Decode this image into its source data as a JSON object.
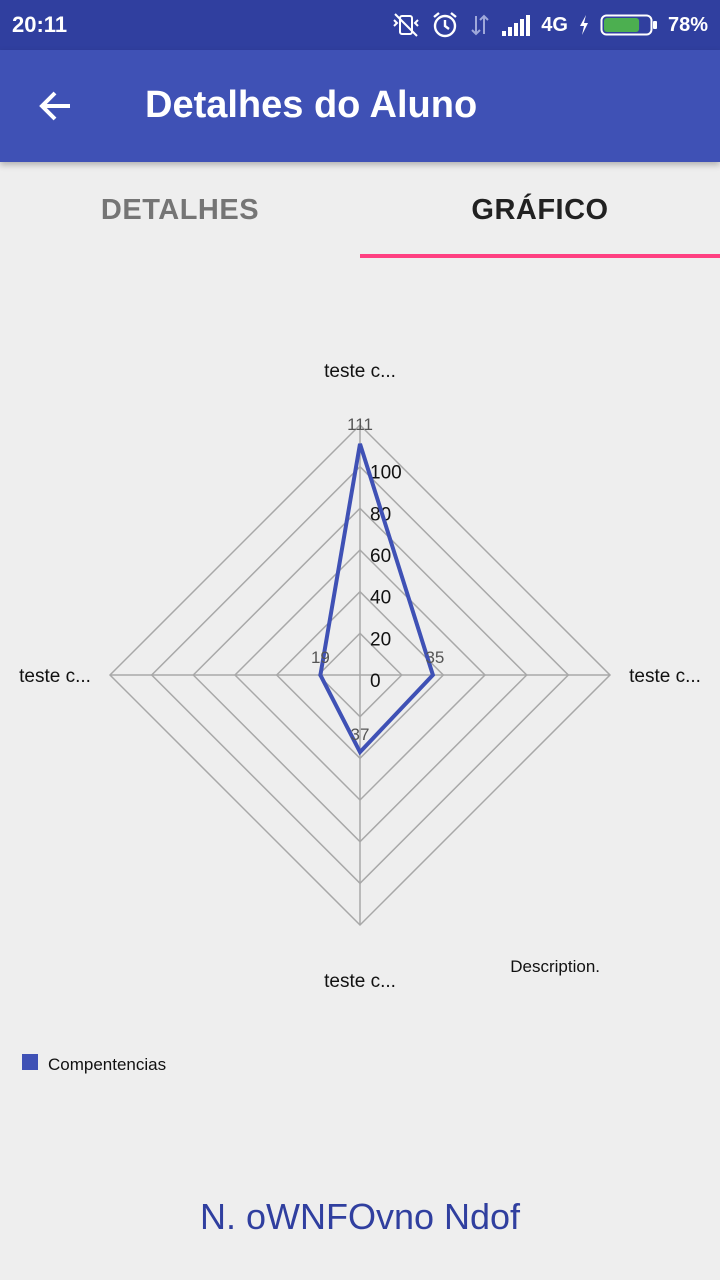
{
  "status": {
    "time": "20:11",
    "network": "4G",
    "battery": "78%",
    "battery_level": 0.78,
    "battery_color": "#4caf50"
  },
  "app_bar": {
    "title": "Detalhes do Aluno",
    "color": "#3f51b5"
  },
  "tabs": [
    {
      "label": "DETALHES",
      "selected": false
    },
    {
      "label": "GRÁFICO",
      "selected": true
    }
  ],
  "chart_data": {
    "type": "radar",
    "axes": [
      "teste c...",
      "teste c...",
      "teste c...",
      "teste c..."
    ],
    "ticks": [
      0,
      20,
      40,
      60,
      80,
      100
    ],
    "rmax": 120,
    "series": [
      {
        "name": "Compentencias",
        "values": [
          111,
          35,
          37,
          19
        ],
        "color": "#3f51b5"
      }
    ],
    "description": "Description.",
    "legend_position": "bottom-left",
    "grid": true
  },
  "footer": {
    "name": "N. oWNFOvno Ndof"
  }
}
